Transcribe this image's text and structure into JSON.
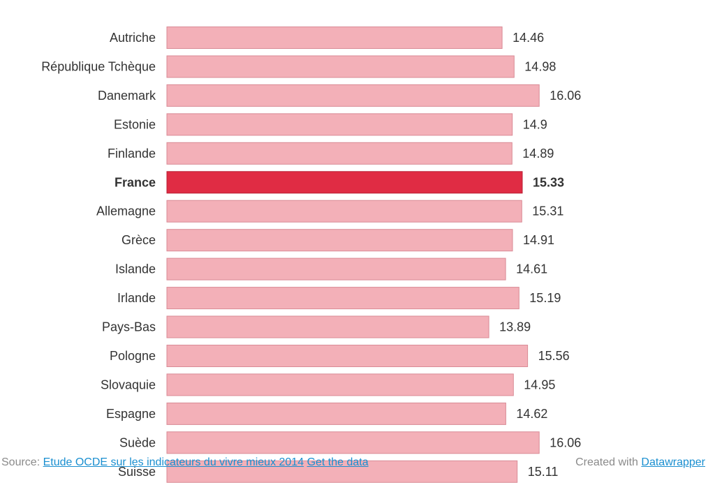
{
  "chart_data": {
    "type": "bar",
    "orientation": "horizontal",
    "categories": [
      "Autriche",
      "République Tchèque",
      "Danemark",
      "Estonie",
      "Finlande",
      "France",
      "Allemagne",
      "Grèce",
      "Islande",
      "Irlande",
      "Pays-Bas",
      "Pologne",
      "Slovaquie",
      "Espagne",
      "Suède",
      "Suisse"
    ],
    "values": [
      14.46,
      14.98,
      16.06,
      14.9,
      14.89,
      15.33,
      15.31,
      14.91,
      14.61,
      15.19,
      13.89,
      15.56,
      14.95,
      14.62,
      16.06,
      15.11
    ],
    "value_labels": [
      "14.46",
      "14.98",
      "16.06",
      "14.9",
      "14.89",
      "15.33",
      "15.31",
      "14.91",
      "14.61",
      "15.19",
      "13.89",
      "15.56",
      "14.95",
      "14.62",
      "16.06",
      "15.11"
    ],
    "highlight": "France",
    "xlim": [
      0,
      17
    ],
    "grid": false,
    "colors": {
      "bar": "#f3b0b8",
      "bar_stroke": "#d98a95",
      "highlight": "#e02c44",
      "highlight_stroke": "#b81e33",
      "label": "#333333"
    }
  },
  "footer": {
    "source_prefix": "Source:",
    "source_link": "Etude OCDE sur les indicateurs du vivre mieux 2014",
    "data_link": "Get the data",
    "created_prefix": "Created with",
    "created_link": "Datawrapper"
  }
}
